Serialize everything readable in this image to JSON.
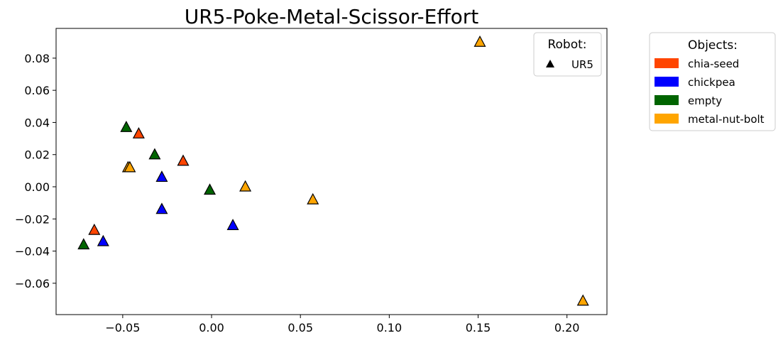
{
  "chart_data": {
    "type": "scatter",
    "title": "UR5-Poke-Metal-Scissor-Effort",
    "xlabel": "",
    "ylabel": "",
    "xlim": [
      -0.0875,
      0.2225
    ],
    "ylim": [
      -0.0795,
      0.0985
    ],
    "xticks": [
      -0.05,
      0.0,
      0.05,
      0.1,
      0.15,
      0.2
    ],
    "xtick_labels": [
      "−0.05",
      "0.00",
      "0.05",
      "0.10",
      "0.15",
      "0.20"
    ],
    "yticks": [
      -0.06,
      -0.04,
      -0.02,
      0.0,
      0.02,
      0.04,
      0.06,
      0.08
    ],
    "ytick_labels": [
      "−0.06",
      "−0.04",
      "−0.02",
      "0.00",
      "0.02",
      "0.04",
      "0.06",
      "0.08"
    ],
    "grid": false,
    "marker": "triangle",
    "robot_legend": {
      "title": "Robot:",
      "placement": "top-right",
      "entries": [
        {
          "label": "UR5",
          "marker": "triangle",
          "color": "#000000"
        }
      ]
    },
    "objects_legend": {
      "title": "Objects:",
      "placement": "outside-right",
      "entries": [
        {
          "label": "chia-seed",
          "color": "#FF4500"
        },
        {
          "label": "chickpea",
          "color": "#0000FF"
        },
        {
          "label": "empty",
          "color": "#006400"
        },
        {
          "label": "metal-nut-bolt",
          "color": "#FFA500"
        }
      ]
    },
    "series": [
      {
        "name": "chia-seed",
        "color": "#FF4500",
        "points": [
          {
            "x": -0.041,
            "y": 0.033
          },
          {
            "x": -0.016,
            "y": 0.016
          },
          {
            "x": -0.066,
            "y": -0.027
          }
        ]
      },
      {
        "name": "chickpea",
        "color": "#0000FF",
        "points": [
          {
            "x": -0.028,
            "y": 0.006
          },
          {
            "x": -0.028,
            "y": -0.014
          },
          {
            "x": -0.061,
            "y": -0.034
          },
          {
            "x": 0.012,
            "y": -0.024
          }
        ]
      },
      {
        "name": "empty",
        "color": "#006400",
        "points": [
          {
            "x": -0.048,
            "y": 0.037
          },
          {
            "x": -0.032,
            "y": 0.02
          },
          {
            "x": -0.001,
            "y": -0.002
          },
          {
            "x": -0.072,
            "y": -0.036
          }
        ]
      },
      {
        "name": "metal-nut-bolt",
        "color": "#FFA500",
        "points": [
          {
            "x": -0.047,
            "y": 0.012
          },
          {
            "x": -0.046,
            "y": 0.012
          },
          {
            "x": 0.019,
            "y": 0.0
          },
          {
            "x": 0.057,
            "y": -0.008
          },
          {
            "x": 0.151,
            "y": 0.09
          },
          {
            "x": 0.209,
            "y": -0.071
          }
        ]
      }
    ]
  }
}
